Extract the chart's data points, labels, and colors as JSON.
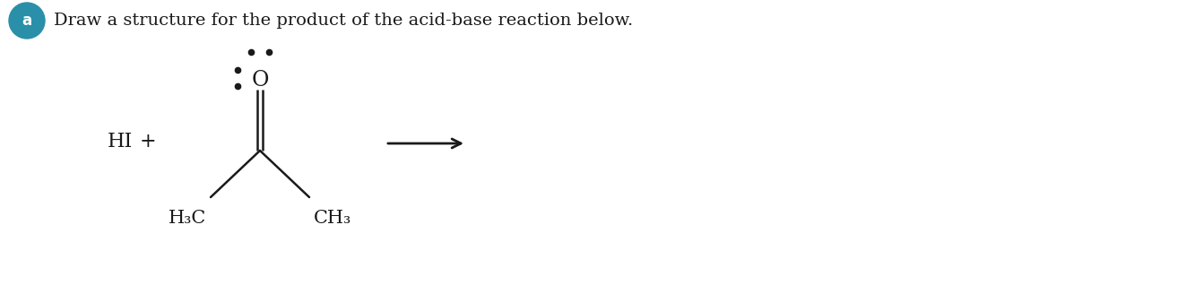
{
  "title_text": "Draw a structure for the product of the acid-base reaction below.",
  "badge_label": "a",
  "badge_color": "#2a8fa8",
  "badge_text_color": "#ffffff",
  "background_color": "#ffffff",
  "hi_text": "HI",
  "plus_text": "+",
  "h3c_left": "H₃C",
  "ch3_right": "CH₃",
  "oxygen_text": "O",
  "arrow_color": "#1a1a1a",
  "text_color": "#1a1a1a",
  "figsize": [
    13.42,
    3.28
  ],
  "dpi": 100
}
